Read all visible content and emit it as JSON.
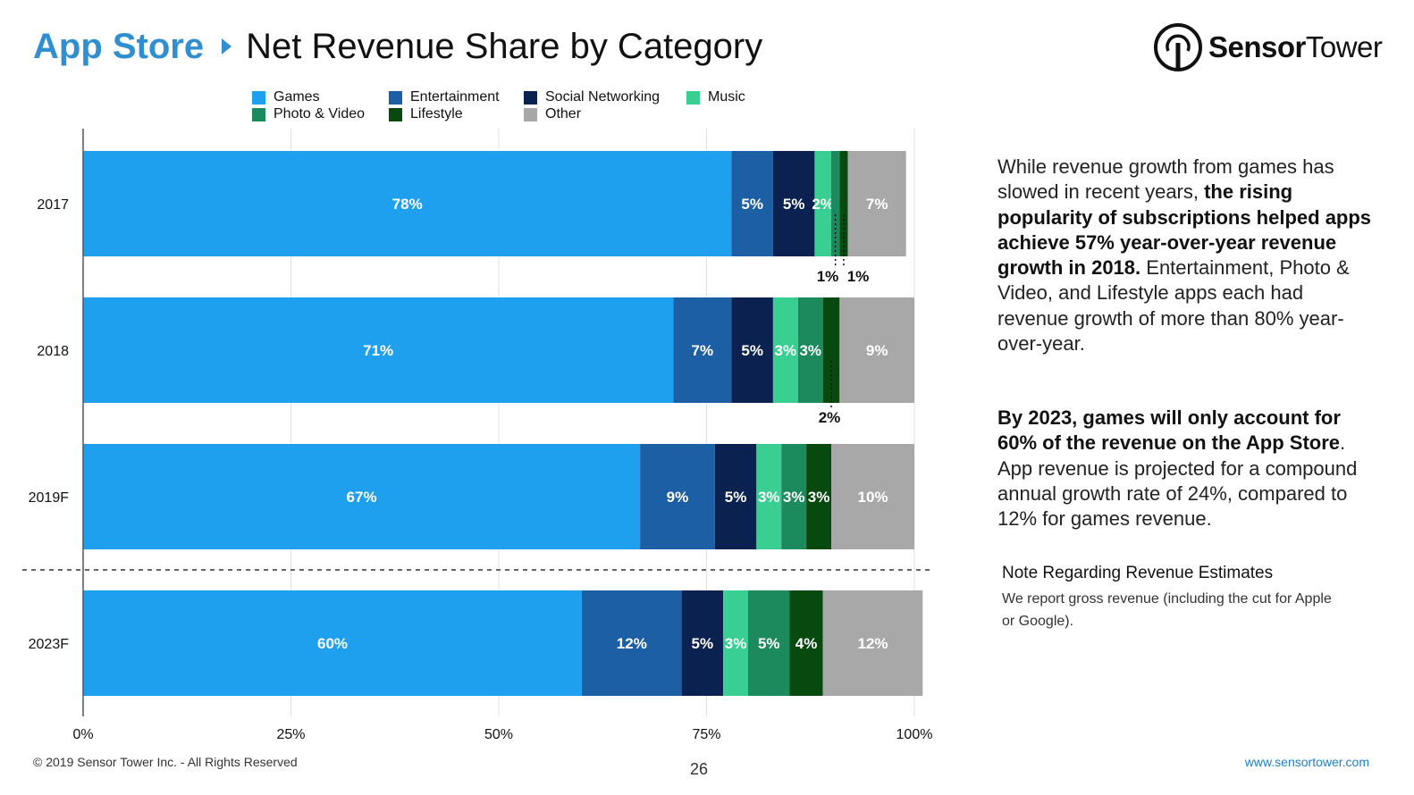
{
  "header": {
    "title_accent": "App Store",
    "title_main": "Net Revenue Share by Category"
  },
  "logo": {
    "name_bold": "Sensor",
    "name_regular": "Tower",
    "icon": "sensor-tower-logo-icon"
  },
  "colors": {
    "title_accent": "#2f8fd0",
    "games": "#1fa0ee",
    "entertainment": "#1c5fa5",
    "social_networking": "#0b2250",
    "music": "#3acf92",
    "photo_video": "#1d8a5e",
    "lifestyle": "#07490f",
    "other": "#a8a8a8",
    "link": "#1f7fc4"
  },
  "chart_data": {
    "type": "bar",
    "orientation": "horizontal",
    "stacked": true,
    "categories": [
      "2017",
      "2018",
      "2019F",
      "2023F"
    ],
    "series": [
      {
        "name": "Games",
        "values": [
          78,
          71,
          67,
          60
        ]
      },
      {
        "name": "Entertainment",
        "values": [
          5,
          7,
          9,
          12
        ]
      },
      {
        "name": "Social Networking",
        "values": [
          5,
          5,
          5,
          5
        ]
      },
      {
        "name": "Music",
        "values": [
          2,
          3,
          3,
          3
        ]
      },
      {
        "name": "Photo & Video",
        "values": [
          1,
          3,
          3,
          5
        ]
      },
      {
        "name": "Lifestyle",
        "values": [
          1,
          2,
          3,
          4
        ]
      },
      {
        "name": "Other",
        "values": [
          7,
          9,
          10,
          12
        ]
      }
    ],
    "x_tick_labels": [
      "0%",
      "25%",
      "50%",
      "75%",
      "100%"
    ],
    "xlim": [
      0,
      100
    ],
    "legend_position": "top",
    "grid": "vertical",
    "separator_before": "2023F",
    "outside_labels": [
      {
        "category": "2017",
        "series": "Photo & Video",
        "text": "1%"
      },
      {
        "category": "2017",
        "series": "Lifestyle",
        "text": "1%"
      },
      {
        "category": "2018",
        "series": "Lifestyle",
        "text": "2%"
      }
    ]
  },
  "side": {
    "p1_normal": "While revenue growth from games has slowed in recent years, ",
    "p1_bold": "the rising popularity of subscriptions helped apps achieve 57% year-over-year revenue growth in 2018.",
    "p1_tail": " Entertainment, Photo & Video, and Lifestyle apps each had revenue growth of more than 80% year-over-year.",
    "p2_bold": "By 2023, games will only account for 60% of the revenue on the App Store",
    "p2_tail": ". App revenue is projected for a compound annual growth rate of 24%, compared to 12% for games revenue.",
    "note_title": "Note Regarding Revenue Estimates",
    "note_body": "We report gross revenue (including the cut for Apple or Google)."
  },
  "footer": {
    "copyright": "© 2019 Sensor Tower Inc. - All Rights Reserved",
    "page_number": "26",
    "website": "www.sensortower.com"
  }
}
